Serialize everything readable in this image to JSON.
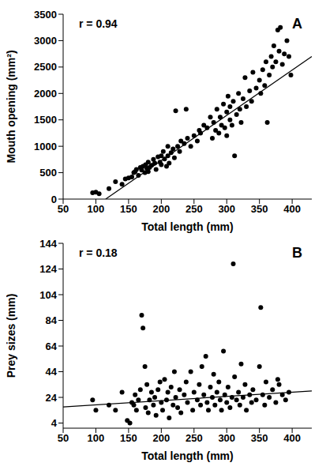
{
  "chart_data": [
    {
      "type": "scatter",
      "title": "A",
      "annotation": "r = 0.94",
      "x_label": "Total length (mm)",
      "y_label": "Mouth opening (mm²)",
      "xlim": [
        50,
        430
      ],
      "xticks": [
        50,
        100,
        150,
        200,
        250,
        300,
        350,
        400
      ],
      "ylim": [
        0,
        3500
      ],
      "yticks": [
        0,
        500,
        1000,
        1500,
        2000,
        2500,
        3000,
        3500
      ],
      "grid": false,
      "series": [
        {
          "type": "scatter",
          "color": "#000000",
          "marker": "circle",
          "x": [
            95,
            100,
            105,
            120,
            130,
            140,
            145,
            150,
            155,
            158,
            160,
            162,
            165,
            168,
            170,
            172,
            175,
            176,
            178,
            180,
            180,
            182,
            185,
            188,
            190,
            192,
            195,
            198,
            200,
            200,
            203,
            205,
            208,
            210,
            210,
            212,
            215,
            218,
            220,
            222,
            225,
            228,
            230,
            235,
            238,
            240,
            245,
            250,
            255,
            258,
            260,
            265,
            270,
            275,
            278,
            280,
            283,
            285,
            288,
            290,
            292,
            295,
            297,
            300,
            300,
            302,
            305,
            305,
            308,
            310,
            312,
            315,
            318,
            320,
            322,
            325,
            328,
            330,
            335,
            338,
            340,
            345,
            350,
            352,
            355,
            358,
            360,
            362,
            365,
            368,
            370,
            372,
            375,
            378,
            380,
            382,
            385,
            388,
            392,
            395,
            398
          ],
          "values": [
            120,
            130,
            100,
            200,
            330,
            280,
            380,
            400,
            420,
            500,
            520,
            560,
            450,
            600,
            550,
            620,
            500,
            650,
            580,
            700,
            520,
            600,
            640,
            750,
            680,
            560,
            800,
            700,
            820,
            650,
            900,
            760,
            620,
            1000,
            820,
            680,
            880,
            950,
            780,
            1670,
            1000,
            900,
            1100,
            1050,
            1700,
            1150,
            1000,
            1200,
            1100,
            1300,
            1250,
            1400,
            1350,
            1550,
            1150,
            1450,
            1300,
            1700,
            1250,
            1550,
            1400,
            1800,
            1350,
            1650,
            1200,
            1950,
            1500,
            1750,
            1400,
            1850,
            820,
            1600,
            2000,
            1700,
            1450,
            1900,
            2300,
            1750,
            2050,
            1850,
            2400,
            2100,
            2250,
            2000,
            2450,
            2150,
            2600,
            1450,
            2350,
            2700,
            2500,
            2900,
            2600,
            3200,
            2800,
            3250,
            2550,
            2750,
            3000,
            2700,
            2350
          ]
        },
        {
          "type": "line",
          "color": "#000000",
          "line_style": "solid",
          "x": [
            115,
            430
          ],
          "values": [
            0,
            2700
          ]
        }
      ]
    },
    {
      "type": "scatter",
      "title": "B",
      "annotation": "r = 0.18",
      "x_label": "Total length (mm)",
      "y_label": "Prey sizes (mm)",
      "xlim": [
        50,
        430
      ],
      "xticks": [
        50,
        100,
        150,
        200,
        250,
        300,
        350,
        400
      ],
      "ylim": [
        0,
        144
      ],
      "yticks": [
        4,
        24,
        44,
        64,
        84,
        104,
        124,
        144
      ],
      "grid": false,
      "series": [
        {
          "type": "scatter",
          "color": "#000000",
          "marker": "circle",
          "x": [
            95,
            100,
            120,
            130,
            140,
            148,
            152,
            155,
            158,
            160,
            162,
            165,
            168,
            170,
            172,
            175,
            176,
            178,
            180,
            182,
            185,
            188,
            190,
            192,
            195,
            198,
            200,
            202,
            205,
            208,
            210,
            212,
            215,
            218,
            220,
            222,
            225,
            228,
            230,
            235,
            238,
            240,
            245,
            248,
            250,
            255,
            258,
            260,
            262,
            265,
            268,
            270,
            272,
            275,
            278,
            280,
            282,
            285,
            288,
            290,
            292,
            295,
            297,
            300,
            302,
            305,
            308,
            310,
            312,
            315,
            318,
            320,
            322,
            325,
            328,
            330,
            335,
            338,
            340,
            345,
            350,
            352,
            355,
            358,
            360,
            365,
            370,
            375,
            378,
            380,
            385,
            390,
            395
          ],
          "values": [
            22,
            14,
            18,
            14,
            28,
            6,
            4,
            20,
            18,
            26,
            14,
            22,
            30,
            88,
            78,
            48,
            16,
            34,
            12,
            22,
            28,
            18,
            24,
            10,
            30,
            36,
            20,
            14,
            38,
            22,
            28,
            8,
            32,
            18,
            44,
            24,
            16,
            30,
            12,
            26,
            36,
            20,
            44,
            14,
            28,
            22,
            34,
            18,
            48,
            26,
            56,
            20,
            14,
            32,
            24,
            42,
            18,
            28,
            36,
            22,
            14,
            60,
            26,
            20,
            32,
            16,
            24,
            128,
            40,
            22,
            28,
            18,
            50,
            24,
            34,
            14,
            26,
            20,
            30,
            22,
            48,
            94,
            26,
            18,
            36,
            24,
            30,
            20,
            38,
            34,
            26,
            22,
            28
          ]
        },
        {
          "type": "line",
          "color": "#000000",
          "line_style": "solid",
          "x": [
            50,
            430
          ],
          "values": [
            16.5,
            29
          ]
        }
      ]
    }
  ]
}
